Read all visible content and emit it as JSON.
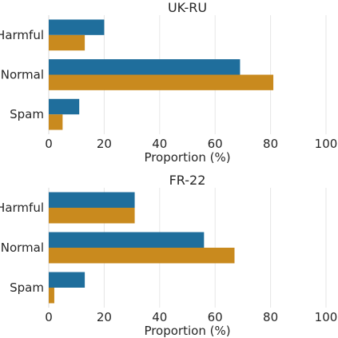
{
  "chart_data": [
    {
      "type": "bar",
      "orientation": "horizontal",
      "title": "UK-RU",
      "xlabel": "Proportion (%)",
      "ylabel": "",
      "xlim": [
        0,
        100
      ],
      "xticks": [
        "0",
        "20",
        "40",
        "60",
        "80",
        "100"
      ],
      "categories": [
        "Harmful",
        "Normal",
        "Spam"
      ],
      "grid": true,
      "series": [
        {
          "color": "#1f6e9c",
          "values": [
            20,
            69,
            11
          ]
        },
        {
          "color": "#c98a1e",
          "values": [
            13,
            81,
            5
          ]
        }
      ]
    },
    {
      "type": "bar",
      "orientation": "horizontal",
      "title": "FR-22",
      "xlabel": "Proportion (%)",
      "ylabel": "",
      "xlim": [
        0,
        100
      ],
      "xticks": [
        "0",
        "20",
        "40",
        "60",
        "80",
        "100"
      ],
      "categories": [
        "Harmful",
        "Normal",
        "Spam"
      ],
      "grid": true,
      "series": [
        {
          "color": "#1f6e9c",
          "values": [
            31,
            56,
            13
          ]
        },
        {
          "color": "#c98a1e",
          "values": [
            31,
            67,
            2
          ]
        }
      ]
    }
  ]
}
